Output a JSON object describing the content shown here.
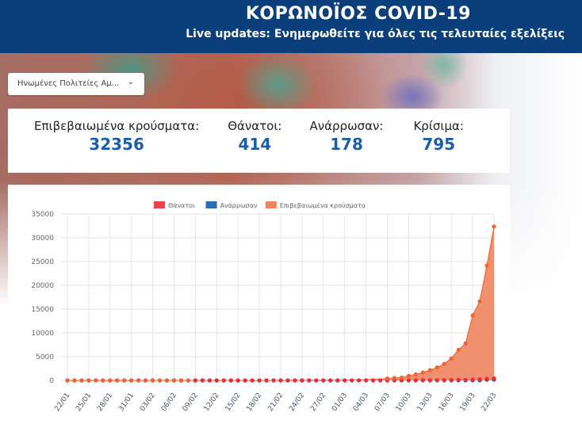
{
  "header": {
    "title": "ΚΟΡΩΝΟΪΟΣ COVID-19",
    "subtitle": "Live updates: Ενημερωθείτε για όλες τις τελευταίες εξελίξεις"
  },
  "country_select": {
    "value": "Ηνωμένες Πολιτείες Αμ...",
    "icon": "chevron-down-icon"
  },
  "stats": [
    {
      "label": "Επιβεβαιωμένα κρούσματα:",
      "value": "32356"
    },
    {
      "label": "Θάνατοι:",
      "value": "414"
    },
    {
      "label": "Ανάρρωσαν:",
      "value": "178"
    },
    {
      "label": "Κρίσιμα:",
      "value": "795"
    }
  ],
  "chart_data": {
    "type": "line",
    "legend_position": "top",
    "grid": true,
    "ylim": [
      0,
      35000
    ],
    "yticks": [
      "0",
      "5000",
      "10000",
      "15000",
      "20000",
      "25000",
      "30000",
      "35000"
    ],
    "xtick_labels": [
      "22/01",
      "25/01",
      "28/01",
      "31/01",
      "03/02",
      "06/02",
      "09/02",
      "12/02",
      "15/02",
      "18/02",
      "21/02",
      "24/02",
      "27/02",
      "01/03",
      "04/03",
      "07/03",
      "10/03",
      "13/03",
      "16/03",
      "19/03",
      "22/03"
    ],
    "series": [
      {
        "name": "Θάνατοι",
        "color": "#f0404f",
        "values": [
          0,
          0,
          0,
          0,
          0,
          0,
          0,
          0,
          0,
          0,
          0,
          0,
          0,
          0,
          0,
          0,
          0,
          0,
          0,
          0,
          0,
          0,
          0,
          0,
          0,
          0,
          0,
          0,
          0,
          0,
          0,
          0,
          0,
          0,
          0,
          0,
          0,
          0,
          1,
          1,
          6,
          7,
          11,
          12,
          14,
          17,
          21,
          22,
          28,
          36,
          40,
          47,
          54,
          63,
          85,
          108,
          118,
          200,
          244,
          307,
          414
        ]
      },
      {
        "name": "Ανάρρωσαν",
        "color": "#2a6db5",
        "values": [
          0,
          0,
          0,
          0,
          0,
          0,
          0,
          0,
          0,
          0,
          0,
          0,
          0,
          0,
          0,
          0,
          0,
          0,
          3,
          3,
          3,
          3,
          3,
          3,
          3,
          3,
          3,
          3,
          3,
          3,
          5,
          5,
          5,
          5,
          5,
          5,
          6,
          6,
          6,
          7,
          7,
          7,
          7,
          7,
          7,
          7,
          7,
          8,
          8,
          8,
          12,
          12,
          12,
          17,
          17,
          17,
          17,
          17,
          17,
          147,
          178
        ]
      },
      {
        "name": "Επιβεβαιωμένα κρούσματα",
        "color": "#f0845f",
        "values": [
          1,
          1,
          2,
          2,
          5,
          5,
          5,
          5,
          5,
          7,
          8,
          8,
          11,
          11,
          11,
          11,
          11,
          11,
          11,
          11,
          12,
          12,
          13,
          13,
          13,
          13,
          13,
          13,
          13,
          13,
          15,
          15,
          15,
          51,
          51,
          57,
          58,
          60,
          68,
          74,
          98,
          118,
          149,
          217,
          262,
          402,
          518,
          583,
          959,
          1281,
          1663,
          2179,
          2727,
          3499,
          4632,
          6421,
          7786,
          13680,
          16638,
          24148,
          32356
        ]
      }
    ]
  }
}
